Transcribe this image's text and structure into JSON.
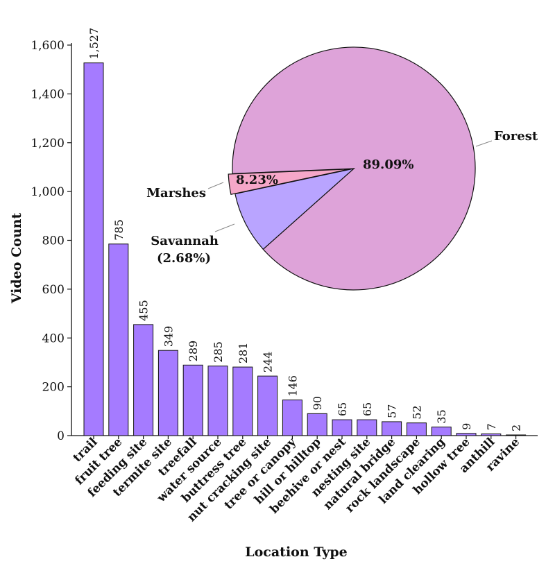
{
  "chart_data": [
    {
      "type": "bar",
      "categories": [
        "trail",
        "fruit tree",
        "feeding site",
        "termite site",
        "treefall",
        "water source",
        "buttress tree",
        "nut cracking site",
        "tree or canopy",
        "hill or hilltop",
        "beehive or nest",
        "nesting site",
        "natural bridge",
        "rock landscape",
        "land clearing",
        "hollow tree",
        "anthill",
        "ravine"
      ],
      "values": [
        1527,
        785,
        455,
        349,
        289,
        285,
        281,
        244,
        146,
        90,
        65,
        65,
        57,
        52,
        35,
        9,
        7,
        2
      ],
      "value_labels": [
        "1,527",
        "785",
        "455",
        "349",
        "289",
        "285",
        "281",
        "244",
        "146",
        "90",
        "65",
        "65",
        "57",
        "52",
        "35",
        "9",
        "7",
        "2"
      ],
      "xlabel": "Location Type",
      "ylabel": "Video Count",
      "ylim": [
        0,
        1600
      ],
      "yticks": [
        0,
        200,
        400,
        600,
        800,
        1000,
        1200,
        1400,
        1600
      ],
      "ytick_labels": [
        "0",
        "200",
        "400",
        "600",
        "800",
        "1,000",
        "1,200",
        "1,400",
        "1,600"
      ],
      "grid": false,
      "bar_color": "#a57bff"
    },
    {
      "type": "pie",
      "slices": [
        {
          "label": "Forest",
          "pct_text": "89.09%",
          "value": 89.09,
          "color": "#dea3d9"
        },
        {
          "label": "Marshes",
          "pct_text": "8.23%",
          "value": 8.23,
          "color": "#b9a4ff"
        },
        {
          "label": "Savannah",
          "pct_text": "(2.68%)",
          "value": 2.68,
          "color": "#f5a7c8"
        }
      ]
    }
  ]
}
